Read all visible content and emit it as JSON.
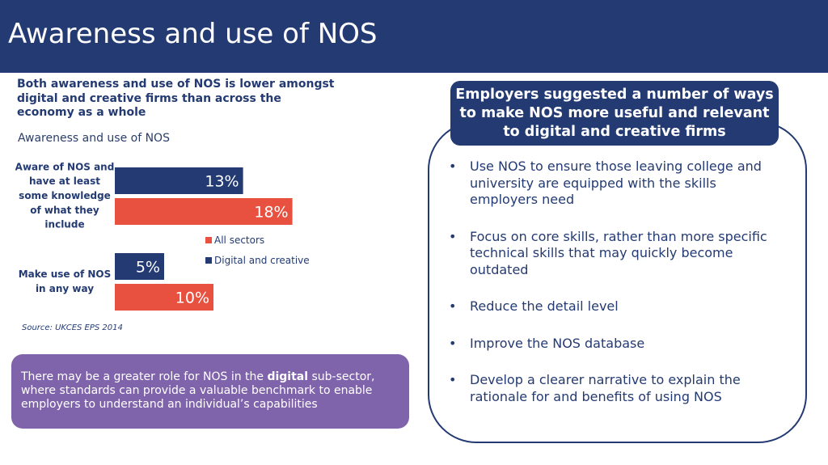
{
  "slide": {
    "title": "Awareness and use of NOS",
    "subtitle": "Both awareness and use of NOS is lower amongst digital and creative firms than across the economy as a whole",
    "chart_heading": "Awareness and use of NOS",
    "source": "Source: UKCES EPS 2014"
  },
  "callout": {
    "text_before": "There may be a greater role for NOS in the ",
    "text_bold": "digital",
    "text_after": " sub-sector, where standards can provide a valuable benchmark to enable employers to understand an individual’s capabilities"
  },
  "panel": {
    "header": "Employers suggested a number of ways to make NOS more useful and relevant to digital and creative firms",
    "bullet_symbol": "•",
    "bullets": [
      "Use NOS to ensure those leaving college and university are equipped with the skills employers need",
      "Focus on core skills, rather than more specific technical skills that may quickly become outdated",
      "Reduce the detail level",
      "Improve the NOS database",
      "Develop a clearer narrative to explain the rationale for and benefits of using NOS"
    ]
  },
  "colors": {
    "navy": "#233a72",
    "red": "#e8513f",
    "purple": "#8064ab"
  },
  "chart_data": {
    "type": "bar",
    "orientation": "horizontal",
    "categories": [
      [
        "Aware of NOS and",
        "have at least",
        "some knowledge",
        "of what they",
        "include"
      ],
      [
        "Make use of NOS",
        "in any way"
      ]
    ],
    "series": [
      {
        "name": "Digital and creative",
        "color": "#233a72",
        "values": [
          13,
          5
        ],
        "labels": [
          "13%",
          "5%"
        ]
      },
      {
        "name": "All sectors",
        "color": "#e8513f",
        "values": [
          18,
          10
        ],
        "labels": [
          "18%",
          "10%"
        ]
      }
    ],
    "legend_order": [
      "All sectors",
      "Digital and creative"
    ],
    "legend_position": "right",
    "xlim": [
      0,
      20
    ],
    "grid": false,
    "axis_visible": false
  }
}
